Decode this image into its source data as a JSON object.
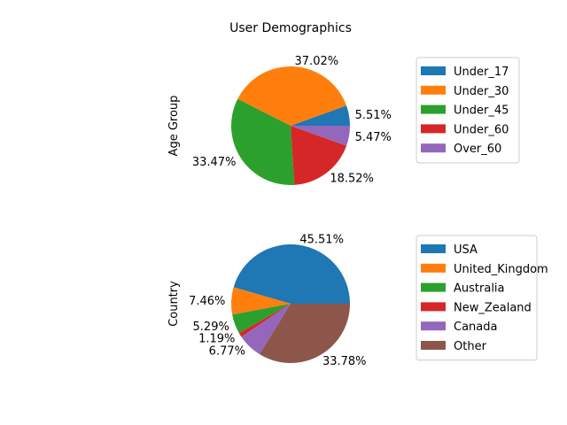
{
  "figure_title": "User Demographics",
  "chart_data": [
    {
      "type": "pie",
      "ylabel": "Age Group",
      "labels": [
        "Under_17",
        "Under_30",
        "Under_45",
        "Under_60",
        "Over_60"
      ],
      "values": [
        5.51,
        37.02,
        33.47,
        18.52,
        5.47
      ],
      "value_labels": [
        "5.51%",
        "37.02%",
        "33.47%",
        "18.52%",
        "5.47%"
      ],
      "colors": [
        "#1f77b4",
        "#ff7f0e",
        "#2ca02c",
        "#d62728",
        "#9467bd"
      ],
      "legend_placement": "right"
    },
    {
      "type": "pie",
      "ylabel": "Country",
      "labels": [
        "USA",
        "United_Kingdom",
        "Australia",
        "New_Zealand",
        "Canada",
        "Other"
      ],
      "values": [
        45.51,
        7.46,
        5.29,
        1.19,
        6.77,
        33.78
      ],
      "value_labels": [
        "45.51%",
        "7.46%",
        "5.29%",
        "1.19%",
        "6.77%",
        "33.78%"
      ],
      "colors": [
        "#1f77b4",
        "#ff7f0e",
        "#2ca02c",
        "#d62728",
        "#9467bd",
        "#8c564b"
      ],
      "legend_placement": "right"
    }
  ]
}
